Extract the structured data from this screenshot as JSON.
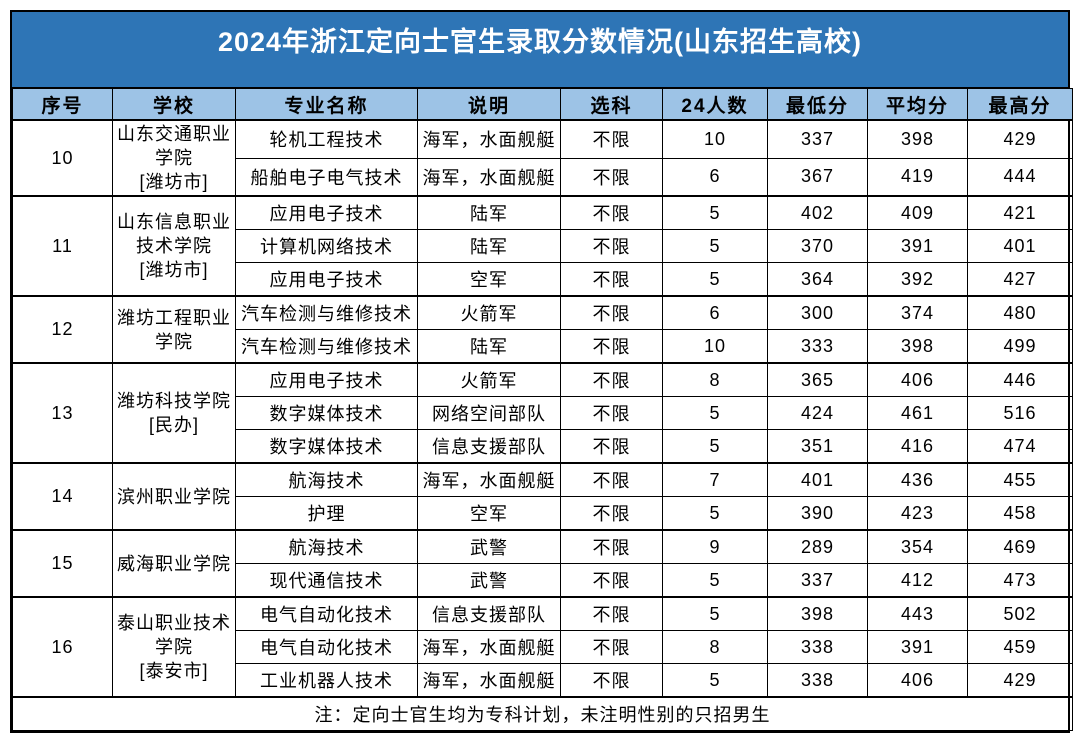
{
  "title": "2024年浙江定向士官生录取分数情况(山东招生高校)",
  "colors": {
    "title_bg": "#2E75B6",
    "title_text": "#FFFFFF",
    "header_bg": "#9DC3E6",
    "border": "#000000",
    "cell_bg": "#FFFFFF",
    "cell_text": "#000000"
  },
  "table": {
    "headers": [
      "序号",
      "学校",
      "专业名称",
      "说明",
      "选科",
      "24人数",
      "最低分",
      "平均分",
      "最高分"
    ],
    "sections": [
      {
        "no": "10",
        "school": "山东交通职业学院",
        "location": "[潍坊市]",
        "rows": [
          {
            "major": "轮机工程技术",
            "desc": "海军，水面舰艇",
            "subject": "不限",
            "count": "10",
            "min": "337",
            "avg": "398",
            "max": "429"
          },
          {
            "major": "船舶电子电气技术",
            "desc": "海军，水面舰艇",
            "subject": "不限",
            "count": "6",
            "min": "367",
            "avg": "419",
            "max": "444"
          }
        ]
      },
      {
        "no": "11",
        "school": "山东信息职业技术学院",
        "location": "[潍坊市]",
        "rows": [
          {
            "major": "应用电子技术",
            "desc": "陆军",
            "subject": "不限",
            "count": "5",
            "min": "402",
            "avg": "409",
            "max": "421"
          },
          {
            "major": "计算机网络技术",
            "desc": "陆军",
            "subject": "不限",
            "count": "5",
            "min": "370",
            "avg": "391",
            "max": "401"
          },
          {
            "major": "应用电子技术",
            "desc": "空军",
            "subject": "不限",
            "count": "5",
            "min": "364",
            "avg": "392",
            "max": "427"
          }
        ]
      },
      {
        "no": "12",
        "school": "潍坊工程职业学院",
        "location": "",
        "rows": [
          {
            "major": "汽车检测与维修技术",
            "desc": "火箭军",
            "subject": "不限",
            "count": "6",
            "min": "300",
            "avg": "374",
            "max": "480"
          },
          {
            "major": "汽车检测与维修技术",
            "desc": "陆军",
            "subject": "不限",
            "count": "10",
            "min": "333",
            "avg": "398",
            "max": "499"
          }
        ]
      },
      {
        "no": "13",
        "school": "潍坊科技学院",
        "location": "[民办]",
        "rows": [
          {
            "major": "应用电子技术",
            "desc": "火箭军",
            "subject": "不限",
            "count": "8",
            "min": "365",
            "avg": "406",
            "max": "446"
          },
          {
            "major": "数字媒体技术",
            "desc": "网络空间部队",
            "subject": "不限",
            "count": "5",
            "min": "424",
            "avg": "461",
            "max": "516"
          },
          {
            "major": "数字媒体技术",
            "desc": "信息支援部队",
            "subject": "不限",
            "count": "5",
            "min": "351",
            "avg": "416",
            "max": "474"
          }
        ]
      },
      {
        "no": "14",
        "school": "滨州职业学院",
        "location": "",
        "rows": [
          {
            "major": "航海技术",
            "desc": "海军，水面舰艇",
            "subject": "不限",
            "count": "7",
            "min": "401",
            "avg": "436",
            "max": "455"
          },
          {
            "major": "护理",
            "desc": "空军",
            "subject": "不限",
            "count": "5",
            "min": "390",
            "avg": "423",
            "max": "458"
          }
        ]
      },
      {
        "no": "15",
        "school": "威海职业学院",
        "location": "",
        "rows": [
          {
            "major": "航海技术",
            "desc": "武警",
            "subject": "不限",
            "count": "9",
            "min": "289",
            "avg": "354",
            "max": "469"
          },
          {
            "major": "现代通信技术",
            "desc": "武警",
            "subject": "不限",
            "count": "5",
            "min": "337",
            "avg": "412",
            "max": "473"
          }
        ]
      },
      {
        "no": "16",
        "school": "泰山职业技术学院",
        "location": "[泰安市]",
        "rows": [
          {
            "major": "电气自动化技术",
            "desc": "信息支援部队",
            "subject": "不限",
            "count": "5",
            "min": "398",
            "avg": "443",
            "max": "502"
          },
          {
            "major": "电气自动化技术",
            "desc": "海军，水面舰艇",
            "subject": "不限",
            "count": "8",
            "min": "338",
            "avg": "391",
            "max": "459"
          },
          {
            "major": "工业机器人技术",
            "desc": "海军，水面舰艇",
            "subject": "不限",
            "count": "5",
            "min": "338",
            "avg": "406",
            "max": "429"
          }
        ]
      }
    ],
    "note": "注：定向士官生均为专科计划，未注明性别的只招男生"
  }
}
